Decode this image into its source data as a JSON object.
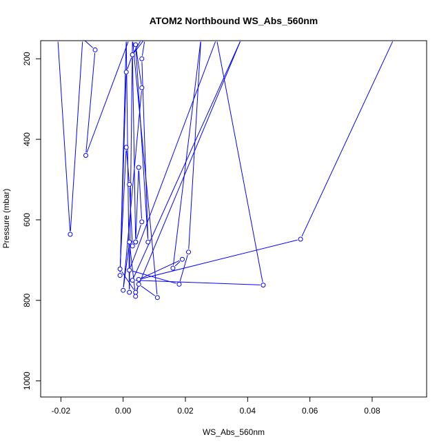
{
  "chart_data": {
    "type": "line",
    "title": "ATOM2 Northbound WS_Abs_560nm",
    "xlabel": "WS_Abs_560nm",
    "ylabel": "Pressure (mbar)",
    "xlim": [
      -0.0265,
      0.0975
    ],
    "ylim": [
      1040,
      155
    ],
    "y_inverted": true,
    "grid": false,
    "legend": "none",
    "series_color": "#0000ff",
    "x_ticks": [
      -0.02,
      0.0,
      0.02,
      0.04,
      0.06,
      0.08
    ],
    "x_tick_labels": [
      "-0.02",
      "0.00",
      "0.02",
      "0.04",
      "0.06",
      "0.08"
    ],
    "y_ticks": [
      200,
      400,
      600,
      800,
      1000
    ],
    "y_tick_labels": [
      "200",
      "400",
      "600",
      "800",
      "1000"
    ],
    "series": [
      {
        "x": [
          0.087,
          0.057,
          0.005,
          0.019,
          0.016,
          0.025,
          0.021,
          0.018,
          0.002,
          0.03,
          0.045,
          0.003,
          0.038,
          0.004,
          -0.001,
          0.001,
          0.002,
          0.003,
          0.004,
          0.005,
          0.006,
          0.004,
          0.003,
          0.007,
          0.006,
          0.008,
          0.004,
          0.006,
          0.0,
          0.002,
          0.004,
          0.005,
          0.011,
          0.003,
          0.002,
          0.001,
          -0.001,
          0.001,
          0.003,
          0.006,
          0.002,
          -0.012,
          -0.009,
          -0.013,
          -0.017,
          -0.021
        ],
        "y": [
          150,
          648,
          748,
          698,
          720,
          150,
          680,
          760,
          725,
          150,
          762,
          750,
          150,
          780,
          722,
          420,
          512,
          665,
          655,
          470,
          605,
          655,
          190,
          150,
          200,
          655,
          165,
          272,
          775,
          655,
          790,
          760,
          793,
          150,
          780,
          150,
          738,
          233,
          190,
          150,
          150,
          440,
          178,
          150,
          636,
          150
        ]
      }
    ]
  }
}
